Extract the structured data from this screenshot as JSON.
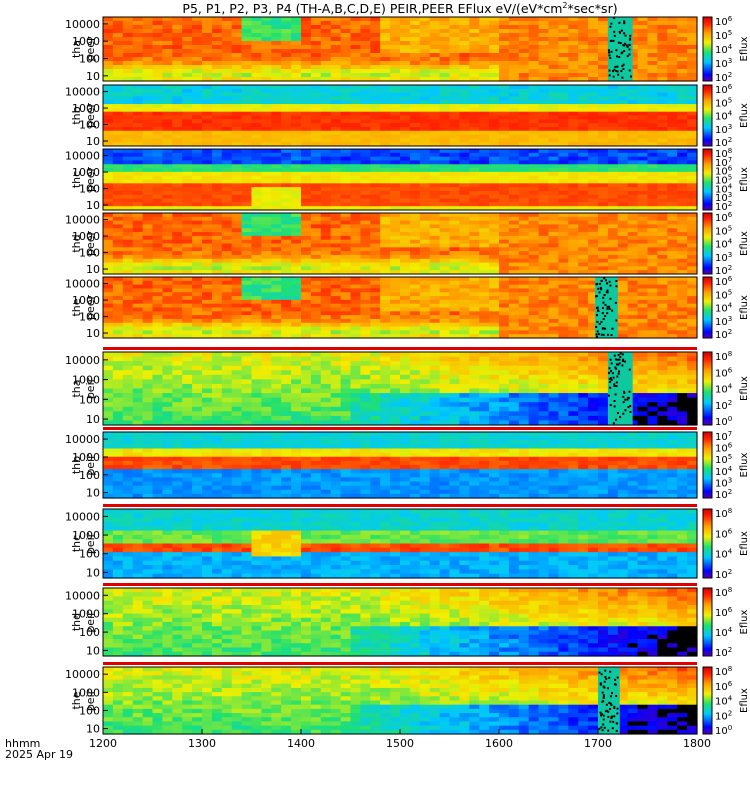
{
  "title": "P5, P1, P2, P3, P4 (TH-A,B,C,D,E) PEIR,PEER EFlux eV/(eV*cm",
  "title_sup": "2",
  "title_tail": "*sec*sr)",
  "xaxis_label_line1": "hhmm",
  "xaxis_label_line2": "2025 Apr 19",
  "chart_data": {
    "type": "heatmap",
    "x_ticks": [
      "1200",
      "1300",
      "1400",
      "1500",
      "1600",
      "1700",
      "1800"
    ],
    "x_range": [
      1200,
      1800
    ],
    "y_ticks": [
      "10000",
      "1000",
      "100",
      "10"
    ],
    "y_scale": "log",
    "y_range": [
      5,
      25000
    ],
    "colorbar_label": "Eflux",
    "panels": [
      {
        "id": "tha-peer",
        "probe": "tha",
        "species": "peer",
        "cbar_ticks": [
          "6",
          "5",
          "4",
          "3",
          "2"
        ],
        "cbar_exp": [
          6,
          5,
          4,
          3,
          2
        ],
        "kind": "e",
        "sat_windows": [
          [
            1710,
            1735
          ]
        ],
        "has_bar": false
      },
      {
        "id": "thb-peer",
        "probe": "thb",
        "species": "peer",
        "cbar_ticks": [
          "6",
          "5",
          "4",
          "3",
          "2"
        ],
        "cbar_exp": [
          6,
          5,
          4,
          3,
          2
        ],
        "kind": "eflat",
        "sat_windows": [],
        "has_bar": false
      },
      {
        "id": "thc-peer",
        "probe": "thc",
        "species": "peer",
        "cbar_ticks": [
          "8",
          "7",
          "6",
          "5",
          "4",
          "3",
          "2"
        ],
        "cbar_exp": [
          8,
          7,
          6,
          5,
          4,
          3,
          2
        ],
        "kind": "ec",
        "sat_windows": [],
        "has_bar": false
      },
      {
        "id": "thd-peer",
        "probe": "thd",
        "species": "peer",
        "cbar_ticks": [
          "6",
          "5",
          "4",
          "3",
          "2"
        ],
        "cbar_exp": [
          6,
          5,
          4,
          3,
          2
        ],
        "kind": "e",
        "sat_windows": [],
        "has_bar": false
      },
      {
        "id": "the-peer",
        "probe": "the",
        "species": "peer",
        "cbar_ticks": [
          "6",
          "5",
          "4",
          "3",
          "2"
        ],
        "cbar_exp": [
          6,
          5,
          4,
          3,
          2
        ],
        "kind": "e",
        "sat_windows": [
          [
            1697,
            1720
          ]
        ],
        "has_bar": true
      },
      {
        "id": "tha-peir",
        "probe": "tha",
        "species": "peir",
        "cbar_ticks": [
          "8",
          "6",
          "4",
          "2",
          "0"
        ],
        "cbar_exp": [
          8,
          6,
          4,
          2,
          0
        ],
        "kind": "i",
        "sat_windows": [
          [
            1710,
            1735
          ]
        ],
        "has_bar": true
      },
      {
        "id": "thb-peir",
        "probe": "thb",
        "species": "peir",
        "cbar_ticks": [
          "7",
          "6",
          "5",
          "4",
          "3",
          "2"
        ],
        "cbar_exp": [
          7,
          6,
          5,
          4,
          3,
          2
        ],
        "kind": "ib",
        "sat_windows": [],
        "has_bar": true
      },
      {
        "id": "thc-peir",
        "probe": "thc",
        "species": "peir",
        "cbar_ticks": [
          "8",
          "6",
          "4",
          "2"
        ],
        "cbar_exp": [
          8,
          6,
          4,
          2
        ],
        "kind": "ic",
        "sat_windows": [],
        "has_bar": true
      },
      {
        "id": "thd-peir",
        "probe": "thd",
        "species": "peir",
        "cbar_ticks": [
          "8",
          "6",
          "4",
          "2"
        ],
        "cbar_exp": [
          8,
          6,
          4,
          2
        ],
        "kind": "i",
        "sat_windows": [],
        "has_bar": true
      },
      {
        "id": "the-peir",
        "probe": "the",
        "species": "peir",
        "cbar_ticks": [
          "8",
          "6",
          "4",
          "2",
          "0"
        ],
        "cbar_exp": [
          8,
          6,
          4,
          2,
          0
        ],
        "kind": "i",
        "sat_windows": [
          [
            1700,
            1722
          ]
        ],
        "has_bar": true
      }
    ]
  }
}
